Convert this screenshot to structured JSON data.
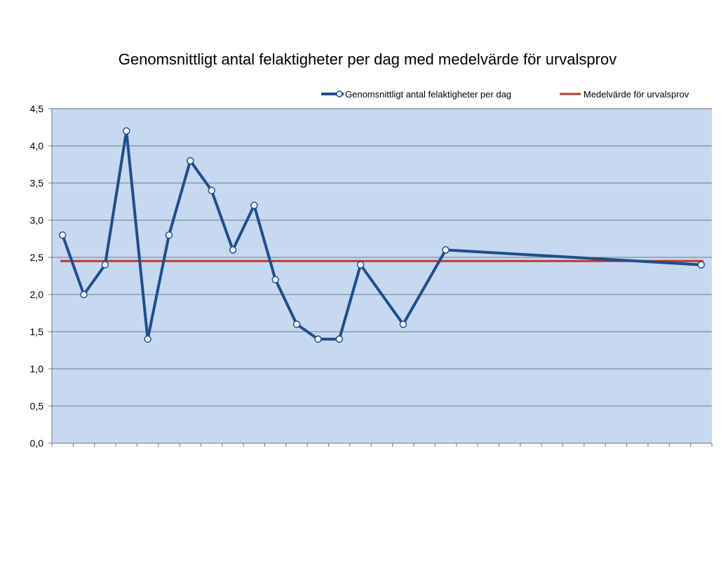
{
  "chart_data": {
    "type": "line",
    "title": "Genomsnittligt antal felaktigheter per dag med medelvärde för urvalsprov",
    "xlabel": "",
    "ylabel": "",
    "ylim": [
      0,
      4.5
    ],
    "yticks": [
      "0,0",
      "0,5",
      "1,0",
      "1,5",
      "2,0",
      "2,5",
      "3,0",
      "3,5",
      "4,0",
      "4,5"
    ],
    "grid": true,
    "legend_position": "top-right",
    "x_category_count": 31,
    "series": [
      {
        "name": "Genomsnittligt antal felaktigheter per dag",
        "color": "#1f4e8c",
        "marker": "circle",
        "points": [
          {
            "x": 1,
            "y": 2.8
          },
          {
            "x": 2,
            "y": 2.0
          },
          {
            "x": 3,
            "y": 2.4
          },
          {
            "x": 4,
            "y": 4.2
          },
          {
            "x": 5,
            "y": 1.4
          },
          {
            "x": 6,
            "y": 2.8
          },
          {
            "x": 7,
            "y": 3.8
          },
          {
            "x": 8,
            "y": 3.4
          },
          {
            "x": 9,
            "y": 2.6
          },
          {
            "x": 10,
            "y": 3.2
          },
          {
            "x": 11,
            "y": 2.2
          },
          {
            "x": 12,
            "y": 1.6
          },
          {
            "x": 13,
            "y": 1.4
          },
          {
            "x": 14,
            "y": 1.4
          },
          {
            "x": 15,
            "y": 2.4
          },
          {
            "x": 17,
            "y": 1.6
          },
          {
            "x": 19,
            "y": 2.6
          },
          {
            "x": 31,
            "y": 2.4
          }
        ]
      },
      {
        "name": "Medelvärde för urvalsprov",
        "color": "#c0392b",
        "value": 2.45
      }
    ]
  },
  "colors": {
    "plot_background": "#c6d9f0",
    "gridline": "#6b7b8c",
    "axis": "#777777"
  }
}
